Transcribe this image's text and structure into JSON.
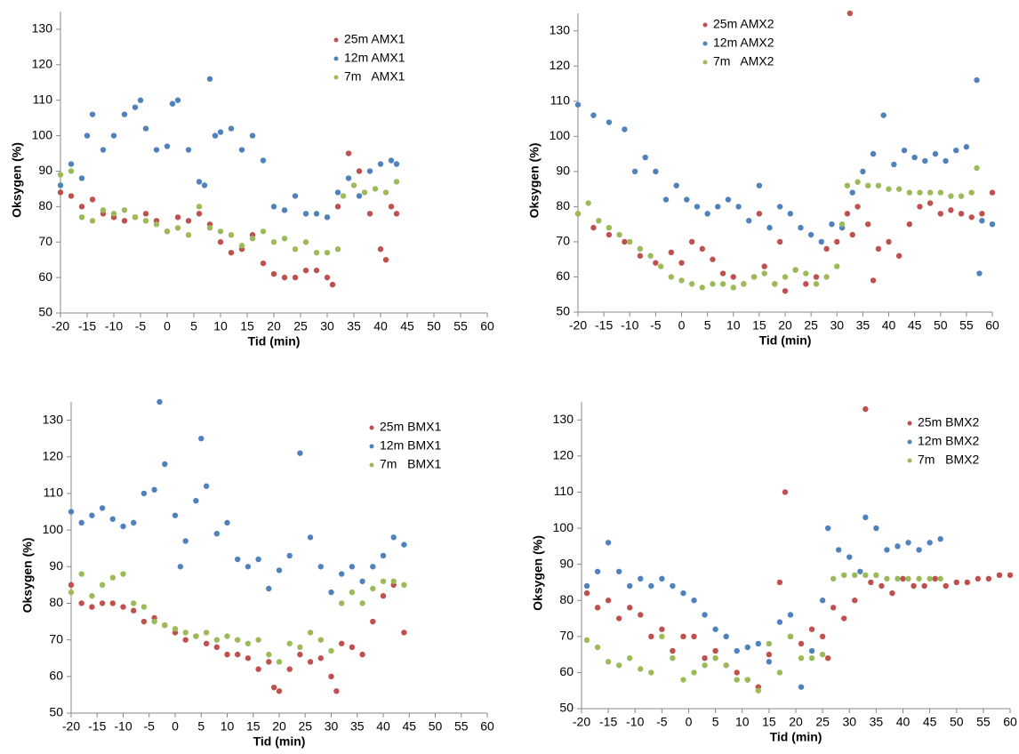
{
  "chart_data": [
    {
      "type": "scatter",
      "xlabel": "Tid (min)",
      "ylabel": "Oksygen (%)",
      "xlim": [
        -20,
        60
      ],
      "ylim": [
        50,
        135
      ],
      "xticks": [
        -20,
        -15,
        -10,
        -5,
        0,
        5,
        10,
        15,
        20,
        25,
        30,
        35,
        40,
        45,
        50,
        55,
        60
      ],
      "yticks": [
        50,
        60,
        70,
        80,
        90,
        100,
        110,
        120,
        130
      ],
      "series": [
        {
          "name": "25m AMX1",
          "color": "#c0504d",
          "x": [
            -20,
            -18,
            -16,
            -14,
            -12,
            -10,
            -8,
            -6,
            -4,
            -2,
            0,
            2,
            4,
            6,
            8,
            10,
            12,
            14,
            16,
            18,
            20,
            22,
            24,
            26,
            28,
            30,
            31,
            32,
            34,
            36,
            38,
            40,
            41,
            42,
            43
          ],
          "values": [
            84,
            83,
            80,
            82,
            78,
            77,
            76,
            77,
            78,
            76,
            73,
            77,
            76,
            78,
            75,
            70,
            67,
            68,
            72,
            64,
            61,
            60,
            60,
            62,
            62,
            60,
            58,
            80,
            95,
            90,
            78,
            68,
            65,
            80,
            78
          ]
        },
        {
          "name": "12m AMX1",
          "color": "#4f81bd",
          "x": [
            -20,
            -18,
            -16,
            -15,
            -14,
            -12,
            -10,
            -8,
            -6,
            -5,
            -4,
            -2,
            0,
            1,
            2,
            4,
            6,
            7,
            8,
            9,
            10,
            12,
            14,
            16,
            18,
            20,
            22,
            24,
            26,
            28,
            30,
            32,
            34,
            36,
            38,
            40,
            42,
            43
          ],
          "values": [
            86,
            92,
            88,
            100,
            106,
            96,
            100,
            106,
            108,
            110,
            102,
            96,
            97,
            109,
            110,
            96,
            87,
            86,
            116,
            100,
            101,
            102,
            96,
            100,
            93,
            80,
            79,
            83,
            78,
            78,
            77,
            84,
            88,
            83,
            90,
            92,
            93,
            92
          ]
        },
        {
          "name": "7m   AMX1",
          "color": "#9bbb59",
          "x": [
            -20,
            -18,
            -16,
            -14,
            -12,
            -10,
            -8,
            -6,
            -4,
            -2,
            0,
            2,
            4,
            6,
            8,
            10,
            12,
            14,
            16,
            18,
            20,
            22,
            24,
            26,
            28,
            30,
            32,
            33,
            35,
            37,
            39,
            41,
            43
          ],
          "values": [
            89,
            90,
            77,
            76,
            79,
            78,
            79,
            77,
            76,
            75,
            73,
            74,
            72,
            80,
            74,
            73,
            72,
            69,
            71,
            73,
            70,
            71,
            68,
            70,
            67,
            67,
            68,
            83,
            86,
            84,
            85,
            84,
            87
          ]
        }
      ]
    },
    {
      "type": "scatter",
      "xlabel": "Tid (min)",
      "ylabel": "Oksygen (%)",
      "xlim": [
        -20,
        60
      ],
      "ylim": [
        50,
        135
      ],
      "xticks": [
        -20,
        -15,
        -10,
        -5,
        0,
        5,
        10,
        15,
        20,
        25,
        30,
        35,
        40,
        45,
        50,
        55,
        60
      ],
      "yticks": [
        50,
        60,
        70,
        80,
        90,
        100,
        110,
        120,
        130
      ],
      "series": [
        {
          "name": "25m AMX2",
          "color": "#c0504d",
          "x": [
            -20,
            -17,
            -14,
            -11,
            -8,
            -5,
            -2,
            0,
            2,
            4,
            6,
            8,
            10,
            12,
            14,
            15,
            16,
            18,
            19,
            20,
            22,
            24,
            26,
            28,
            30,
            32,
            32.5,
            33,
            34,
            36,
            37,
            38,
            40,
            42,
            44,
            46,
            48,
            50,
            52,
            54,
            56,
            58,
            60
          ],
          "values": [
            78,
            74,
            72,
            70,
            66,
            64,
            67,
            64,
            70,
            68,
            65,
            61,
            60,
            58,
            60,
            78,
            63,
            58,
            70,
            56,
            62,
            58,
            60,
            68,
            70,
            78,
            135,
            72,
            80,
            75,
            59,
            68,
            70,
            66,
            75,
            80,
            81,
            78,
            79,
            78,
            77,
            78,
            84
          ]
        },
        {
          "name": "12m AMX2",
          "color": "#4f81bd",
          "x": [
            -20,
            -17,
            -14,
            -11,
            -9,
            -7,
            -5,
            -3,
            -1,
            1,
            3,
            5,
            7,
            9,
            11,
            13,
            15,
            17,
            19,
            21,
            23,
            25,
            27,
            29,
            31,
            33,
            35,
            37,
            39,
            41,
            43,
            45,
            47,
            49,
            51,
            53,
            55,
            57,
            57.5,
            58,
            60
          ],
          "values": [
            109,
            106,
            104,
            102,
            90,
            94,
            90,
            82,
            86,
            82,
            80,
            78,
            80,
            82,
            80,
            76,
            86,
            74,
            80,
            78,
            74,
            72,
            70,
            75,
            74,
            84,
            90,
            95,
            106,
            92,
            96,
            94,
            93,
            95,
            93,
            96,
            97,
            116,
            61,
            76,
            75
          ]
        },
        {
          "name": "7m   AMX2",
          "color": "#9bbb59",
          "x": [
            -20,
            -18,
            -16,
            -14,
            -12,
            -10,
            -8,
            -6,
            -4,
            -2,
            0,
            2,
            4,
            6,
            8,
            10,
            12,
            14,
            16,
            18,
            20,
            22,
            24,
            26,
            28,
            30,
            31,
            32,
            34,
            36,
            38,
            40,
            42,
            44,
            46,
            48,
            50,
            52,
            54,
            56,
            57
          ],
          "values": [
            78,
            81,
            76,
            74,
            72,
            70,
            68,
            66,
            63,
            60,
            59,
            58,
            57,
            58,
            58,
            57,
            58,
            60,
            61,
            58,
            60,
            62,
            61,
            58,
            60,
            63,
            75,
            86,
            87,
            86,
            86,
            85,
            85,
            84,
            84,
            84,
            84,
            83,
            83,
            84,
            91
          ]
        }
      ]
    },
    {
      "type": "scatter",
      "xlabel": "Tid (min)",
      "ylabel": "Oksygen (%)",
      "xlim": [
        -20,
        60
      ],
      "ylim": [
        50,
        135
      ],
      "xticks": [
        -20,
        -15,
        -10,
        -5,
        0,
        5,
        10,
        15,
        20,
        25,
        30,
        35,
        40,
        45,
        50,
        55,
        60
      ],
      "yticks": [
        50,
        60,
        70,
        80,
        90,
        100,
        110,
        120,
        130
      ],
      "series": [
        {
          "name": "25m BMX1",
          "color": "#c0504d",
          "x": [
            -20,
            -18,
            -16,
            -14,
            -12,
            -10,
            -8,
            -6,
            -4,
            -2,
            0,
            2,
            4,
            6,
            8,
            10,
            12,
            14,
            16,
            18,
            19,
            20,
            22,
            24,
            26,
            28,
            30,
            31,
            32,
            34,
            36,
            38,
            40,
            42,
            44
          ],
          "values": [
            85,
            80,
            79,
            80,
            80,
            79,
            78,
            75,
            76,
            74,
            72,
            70,
            71,
            69,
            68,
            66,
            66,
            65,
            62,
            64,
            57,
            56,
            62,
            66,
            64,
            65,
            60,
            56,
            69,
            68,
            66,
            75,
            82,
            85,
            72
          ]
        },
        {
          "name": "12m BMX1",
          "color": "#4f81bd",
          "x": [
            -20,
            -18,
            -16,
            -14,
            -12,
            -10,
            -8,
            -6,
            -4,
            -3,
            -2,
            0,
            1,
            2,
            4,
            5,
            6,
            8,
            10,
            12,
            14,
            16,
            18,
            20,
            22,
            24,
            26,
            28,
            30,
            32,
            34,
            36,
            38,
            40,
            42,
            44
          ],
          "values": [
            105,
            102,
            104,
            106,
            103,
            101,
            102,
            110,
            111,
            135,
            118,
            104,
            90,
            97,
            108,
            125,
            112,
            99,
            102,
            92,
            90,
            92,
            84,
            89,
            93,
            121,
            98,
            90,
            83,
            88,
            90,
            86,
            90,
            93,
            98,
            96
          ]
        },
        {
          "name": "7m   BMX1",
          "color": "#9bbb59",
          "x": [
            -20,
            -18,
            -16,
            -14,
            -12,
            -10,
            -8,
            -6,
            -4,
            -2,
            0,
            2,
            4,
            6,
            8,
            10,
            12,
            14,
            16,
            18,
            20,
            22,
            24,
            26,
            28,
            30,
            32,
            34,
            36,
            38,
            40,
            42,
            44
          ],
          "values": [
            83,
            88,
            82,
            85,
            87,
            88,
            80,
            79,
            75,
            74,
            73,
            72,
            71,
            72,
            70,
            71,
            70,
            69,
            70,
            66,
            64,
            69,
            68,
            72,
            70,
            67,
            80,
            83,
            80,
            84,
            86,
            86,
            85
          ]
        }
      ]
    },
    {
      "type": "scatter",
      "xlabel": "Tid (min)",
      "ylabel": "Oksygen (%)",
      "xlim": [
        -20,
        60
      ],
      "ylim": [
        50,
        135
      ],
      "xticks": [
        -20,
        -15,
        -10,
        -5,
        0,
        5,
        10,
        15,
        20,
        25,
        30,
        35,
        40,
        45,
        50,
        55,
        60
      ],
      "yticks": [
        50,
        60,
        70,
        80,
        90,
        100,
        110,
        120,
        130
      ],
      "series": [
        {
          "name": "25m BMX2",
          "color": "#c0504d",
          "x": [
            -19,
            -17,
            -15,
            -13,
            -11,
            -9,
            -7,
            -5,
            -3,
            -1,
            1,
            3,
            5,
            7,
            9,
            11,
            13,
            15,
            17,
            18,
            19,
            21,
            23,
            25,
            26,
            27,
            29,
            31,
            33,
            34,
            36,
            38,
            40,
            42,
            44,
            46,
            48,
            50,
            52,
            54,
            56,
            58,
            60
          ],
          "values": [
            82,
            78,
            80,
            75,
            78,
            76,
            70,
            72,
            66,
            70,
            70,
            64,
            66,
            62,
            60,
            58,
            56,
            65,
            85,
            110,
            70,
            68,
            72,
            70,
            64,
            78,
            75,
            80,
            133,
            85,
            84,
            82,
            86,
            84,
            84,
            86,
            84,
            85,
            85,
            86,
            86,
            87,
            87
          ]
        },
        {
          "name": "12m BMX2",
          "color": "#4f81bd",
          "x": [
            -19,
            -17,
            -15,
            -13,
            -11,
            -9,
            -7,
            -5,
            -3,
            -1,
            1,
            3,
            5,
            7,
            9,
            11,
            13,
            15,
            17,
            19,
            21,
            23,
            25,
            26,
            28,
            30,
            32,
            33,
            35,
            37,
            39,
            41,
            43,
            45,
            47
          ],
          "values": [
            84,
            88,
            96,
            88,
            84,
            86,
            84,
            86,
            84,
            82,
            80,
            76,
            72,
            70,
            66,
            67,
            68,
            63,
            74,
            76,
            56,
            66,
            80,
            100,
            94,
            92,
            88,
            103,
            100,
            94,
            95,
            96,
            94,
            96,
            97
          ]
        },
        {
          "name": "7m   BMX2",
          "color": "#9bbb59",
          "x": [
            -19,
            -17,
            -15,
            -13,
            -11,
            -9,
            -7,
            -5,
            -3,
            -1,
            1,
            3,
            5,
            7,
            9,
            11,
            13,
            15,
            17,
            19,
            21,
            23,
            25,
            27,
            29,
            31,
            33,
            35,
            37,
            39,
            41,
            43,
            45,
            47
          ],
          "values": [
            69,
            67,
            63,
            62,
            64,
            61,
            60,
            70,
            64,
            58,
            60,
            62,
            64,
            62,
            58,
            58,
            55,
            68,
            60,
            70,
            64,
            64,
            65,
            86,
            87,
            87,
            87,
            87,
            86,
            86,
            86,
            86,
            86,
            86
          ]
        }
      ]
    }
  ]
}
